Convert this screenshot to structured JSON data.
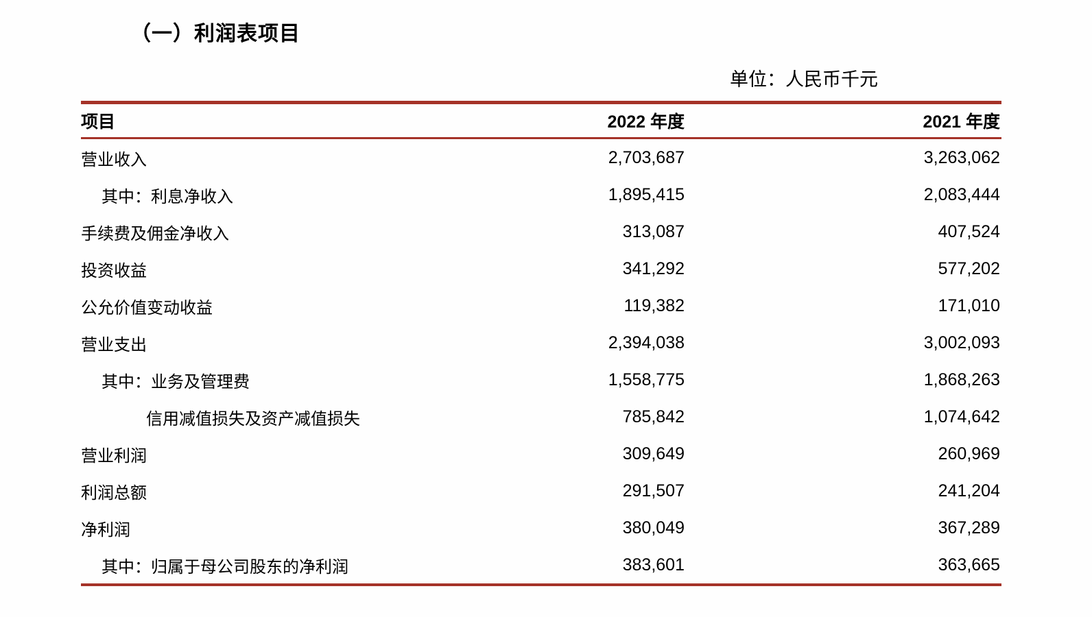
{
  "page": {
    "section_title": "（一）利润表项目",
    "unit_label": "单位：人民币千元"
  },
  "table": {
    "columns": [
      "项目",
      "2022 年度",
      "2021 年度"
    ],
    "rows": [
      {
        "label": "营业收入",
        "indent": 0,
        "v2022": "2,703,687",
        "v2021": "3,263,062"
      },
      {
        "label": "其中：利息净收入",
        "indent": 1,
        "v2022": "1,895,415",
        "v2021": "2,083,444"
      },
      {
        "label": "手续费及佣金净收入",
        "indent": 0,
        "v2022": "313,087",
        "v2021": "407,524"
      },
      {
        "label": "投资收益",
        "indent": 0,
        "v2022": "341,292",
        "v2021": "577,202"
      },
      {
        "label": "公允价值变动收益",
        "indent": 0,
        "v2022": "119,382",
        "v2021": "171,010"
      },
      {
        "label": "营业支出",
        "indent": 0,
        "v2022": "2,394,038",
        "v2021": "3,002,093"
      },
      {
        "label": "其中：业务及管理费",
        "indent": 1,
        "v2022": "1,558,775",
        "v2021": "1,868,263"
      },
      {
        "label": "信用减值损失及资产减值损失",
        "indent": 2,
        "v2022": "785,842",
        "v2021": "1,074,642"
      },
      {
        "label": "营业利润",
        "indent": 0,
        "v2022": "309,649",
        "v2021": "260,969"
      },
      {
        "label": "利润总额",
        "indent": 0,
        "v2022": "291,507",
        "v2021": "241,204"
      },
      {
        "label": "净利润",
        "indent": 0,
        "v2022": "380,049",
        "v2021": "367,289"
      },
      {
        "label": "其中：归属于母公司股东的净利润",
        "indent": 1,
        "v2022": "383,601",
        "v2021": "363,665"
      }
    ]
  },
  "colors": {
    "rule_red": "#A53228",
    "text": "#000000",
    "background": "#FEFEFE"
  }
}
